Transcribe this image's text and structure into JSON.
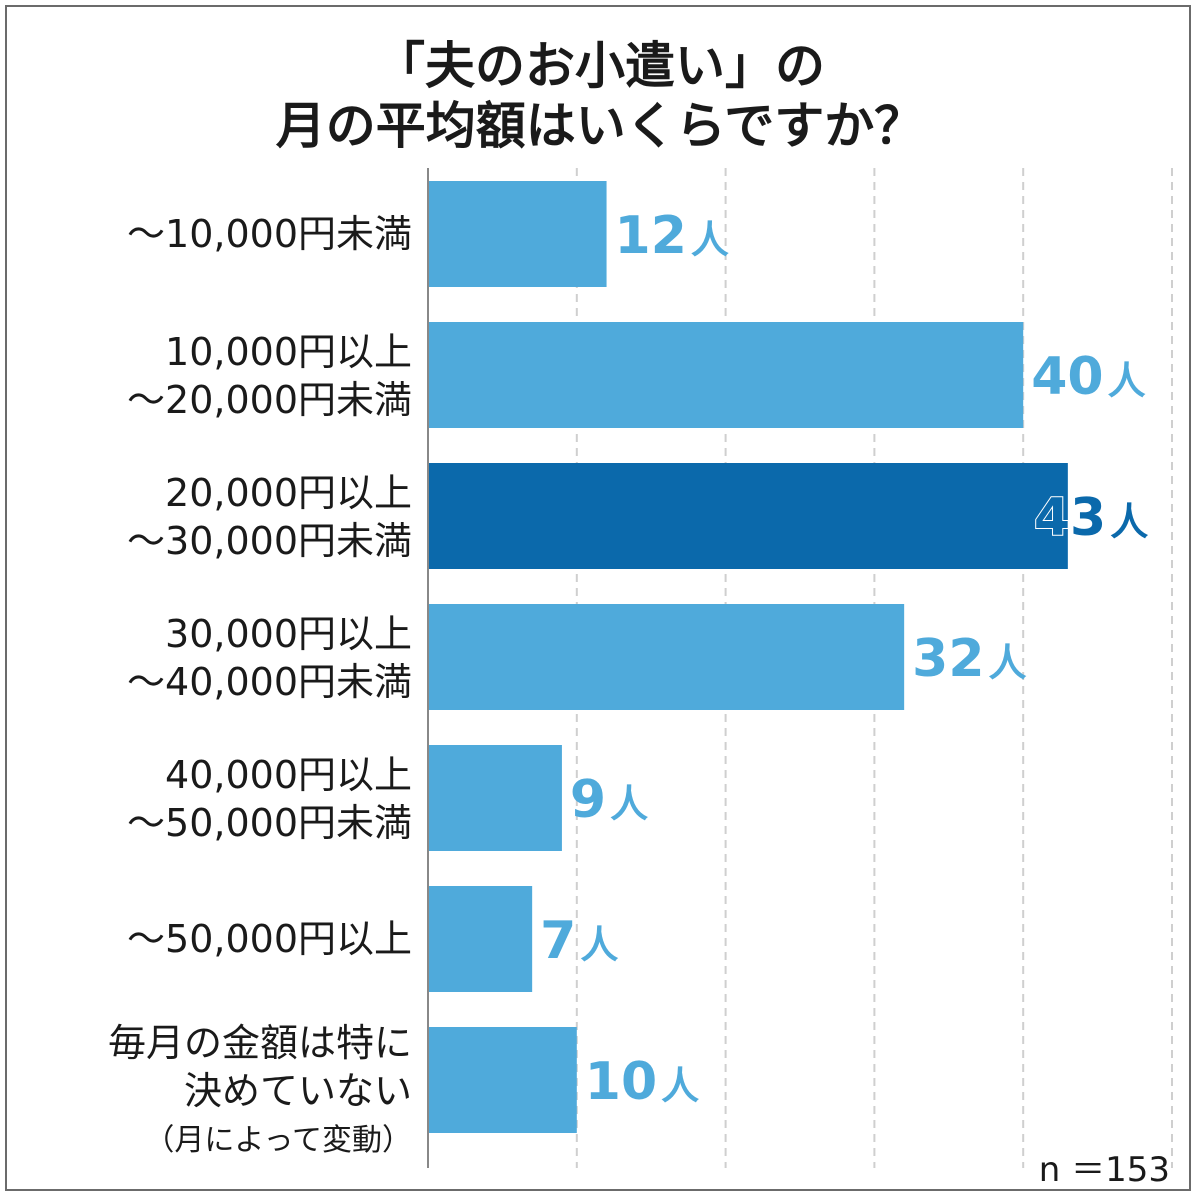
{
  "chart_data": {
    "type": "bar",
    "orientation": "horizontal",
    "title_lines": [
      "「夫のお小遣い」の",
      "月の平均額はいくらですか？"
    ],
    "categories": [
      [
        "～10,000円未満"
      ],
      [
        "10,000円以上",
        "～20,000円未満"
      ],
      [
        "20,000円以上",
        "～30,000円未満"
      ],
      [
        "30,000円以上",
        "～40,000円未満"
      ],
      [
        "40,000円以上",
        "～50,000円未満"
      ],
      [
        "～50,000円以上"
      ],
      [
        "毎月の金額は特に",
        "決めていない",
        "（月によって変動）"
      ]
    ],
    "values": [
      12,
      40,
      43,
      32,
      9,
      7,
      10
    ],
    "unit": "人",
    "highlight_index": 2,
    "xlim": [
      0,
      50
    ],
    "grid": true,
    "sample_size_label": "n ＝153",
    "colors": {
      "bar": "#4faadb",
      "highlight": "#0b69ab",
      "label": "#4faadb",
      "highlight_label": "#0b69ab",
      "grid": "#cfcfcf",
      "axis": "#888888"
    }
  }
}
